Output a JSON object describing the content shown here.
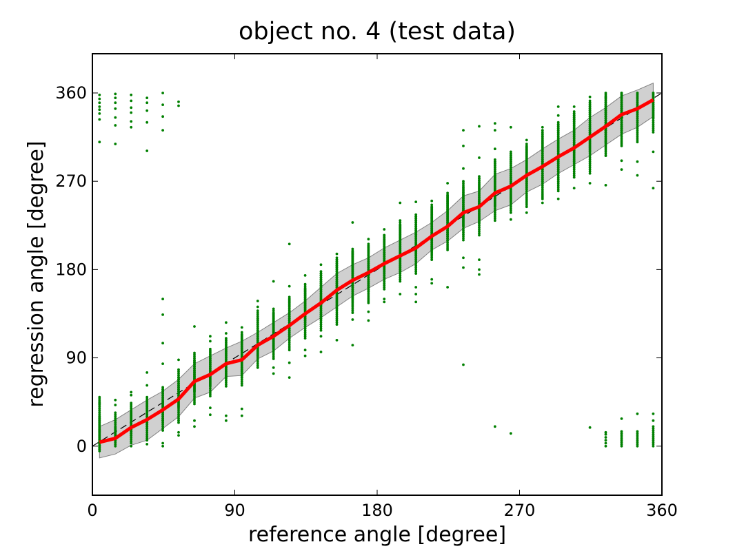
{
  "chart_data": {
    "type": "scatter",
    "title": "object no. 4 (test data)",
    "xlabel": "reference angle [degree]",
    "ylabel": "regression angle [degree]",
    "xlim": [
      0,
      360
    ],
    "ylim": [
      -50,
      400
    ],
    "xticks": [
      0,
      90,
      180,
      270,
      360
    ],
    "yticks": [
      0,
      90,
      180,
      270,
      360
    ],
    "grid": false,
    "colors": {
      "points": "#008000",
      "mean": "#ff0000",
      "band": "#c8c8c8",
      "band_edge": "#808080",
      "reference": "#000000"
    },
    "bin_x": [
      4.5,
      14.5,
      24.5,
      34.5,
      44.5,
      54.5,
      64.5,
      74.5,
      84.5,
      94.5,
      104.5,
      114.5,
      124.5,
      134.5,
      144.5,
      154.5,
      164.5,
      174.5,
      184.5,
      194.5,
      204.5,
      214.5,
      224.5,
      234.5,
      244.5,
      254.5,
      264.5,
      274.5,
      284.5,
      294.5,
      304.5,
      314.5,
      324.5,
      334.5,
      344.5,
      354.5
    ],
    "series": [
      {
        "role": "mean",
        "values": [
          4,
          8,
          19,
          27,
          37,
          48,
          66,
          73,
          84,
          88,
          103,
          112,
          123,
          135,
          146,
          159,
          169,
          177,
          186,
          194,
          202,
          214,
          224,
          238,
          244,
          258,
          265,
          276,
          285,
          295,
          304,
          315,
          326,
          338,
          344,
          353
        ]
      },
      {
        "role": "band_upper",
        "values": [
          20,
          27,
          37,
          47,
          56,
          68,
          84,
          92,
          100,
          107,
          116,
          126,
          136,
          148,
          162,
          176,
          185,
          192,
          202,
          210,
          218,
          228,
          240,
          255,
          260,
          277,
          283,
          292,
          303,
          313,
          322,
          335,
          345,
          357,
          363,
          370
        ]
      },
      {
        "role": "band_lower",
        "values": [
          -12,
          -8,
          1,
          6,
          18,
          30,
          49,
          55,
          71,
          72,
          89,
          97,
          110,
          121,
          131,
          142,
          153,
          161,
          170,
          177,
          186,
          200,
          209,
          222,
          229,
          240,
          246,
          259,
          267,
          278,
          287,
          296,
          307,
          318,
          325,
          336
        ]
      }
    ],
    "point_groups": [
      {
        "x": 4.5,
        "ranges": [
          [
            -5,
            16
          ],
          [
            -3,
            30
          ],
          [
            15,
            50
          ]
        ],
        "extra": [
          0,
          3,
          44,
          310,
          333,
          339,
          343,
          346,
          350,
          354,
          358
        ]
      },
      {
        "x": 14.5,
        "ranges": [
          [
            0,
            19
          ],
          [
            6,
            34
          ]
        ],
        "extra": [
          42,
          47,
          308,
          327,
          335,
          344,
          350,
          355,
          359
        ]
      },
      {
        "x": 24.5,
        "ranges": [
          [
            3,
            35
          ],
          [
            11,
            44
          ]
        ],
        "extra": [
          0,
          52,
          55,
          325,
          331,
          340,
          345,
          352,
          358
        ]
      },
      {
        "x": 34.5,
        "ranges": [
          [
            6,
            46
          ],
          [
            18,
            50
          ]
        ],
        "extra": [
          2,
          62,
          75,
          301,
          330,
          342,
          350,
          355
        ]
      },
      {
        "x": 44.5,
        "ranges": [
          [
            16,
            58
          ],
          [
            26,
            60
          ]
        ],
        "extra": [
          0,
          3,
          84,
          105,
          134,
          150,
          322,
          336,
          348,
          360
        ]
      },
      {
        "x": 54.5,
        "ranges": [
          [
            24,
            70
          ],
          [
            40,
            78
          ]
        ],
        "extra": [
          11,
          14,
          88,
          347,
          351
        ]
      },
      {
        "x": 64.5,
        "ranges": [
          [
            43,
            87
          ],
          [
            56,
            95
          ]
        ],
        "extra": [
          20,
          26,
          122
        ]
      },
      {
        "x": 74.5,
        "ranges": [
          [
            51,
            97
          ],
          [
            62,
            99
          ]
        ],
        "extra": [
          32,
          39,
          107,
          112
        ]
      },
      {
        "x": 84.5,
        "ranges": [
          [
            61,
            108
          ],
          [
            70,
            110
          ]
        ],
        "extra": [
          26,
          31,
          115,
          126
        ]
      },
      {
        "x": 94.5,
        "ranges": [
          [
            62,
            113
          ],
          [
            70,
            116
          ]
        ],
        "extra": [
          31,
          38,
          121
        ]
      },
      {
        "x": 104.5,
        "ranges": [
          [
            80,
            130
          ],
          [
            92,
            138
          ]
        ],
        "extra": [
          148,
          142
        ]
      },
      {
        "x": 114.5,
        "ranges": [
          [
            89,
            135
          ],
          [
            100,
            140
          ]
        ],
        "extra": [
          74,
          80,
          168
        ]
      },
      {
        "x": 124.5,
        "ranges": [
          [
            98,
            150
          ],
          [
            112,
            152
          ]
        ],
        "extra": [
          70,
          85,
          206,
          163
        ]
      },
      {
        "x": 134.5,
        "ranges": [
          [
            110,
            160
          ],
          [
            120,
            165
          ]
        ],
        "extra": [
          92,
          98,
          174
        ]
      },
      {
        "x": 144.5,
        "ranges": [
          [
            118,
            176
          ],
          [
            130,
            178
          ]
        ],
        "extra": [
          96,
          112,
          185
        ]
      },
      {
        "x": 154.5,
        "ranges": [
          [
            124,
            190
          ],
          [
            140,
            192
          ]
        ],
        "extra": [
          108,
          196
        ]
      },
      {
        "x": 164.5,
        "ranges": [
          [
            136,
            198
          ],
          [
            150,
            201
          ]
        ],
        "extra": [
          103,
          129,
          228
        ]
      },
      {
        "x": 174.5,
        "ranges": [
          [
            146,
            204
          ],
          [
            158,
            206
          ]
        ],
        "extra": [
          128,
          137,
          211
        ]
      },
      {
        "x": 184.5,
        "ranges": [
          [
            160,
            215
          ],
          [
            170,
            215
          ]
        ],
        "extra": [
          147,
          150,
          221
        ]
      },
      {
        "x": 194.5,
        "ranges": [
          [
            168,
            225
          ],
          [
            178,
            230
          ]
        ],
        "extra": [
          155,
          248
        ]
      },
      {
        "x": 204.5,
        "ranges": [
          [
            176,
            234
          ],
          [
            190,
            236
          ]
        ],
        "extra": [
          147,
          155,
          162,
          249
        ]
      },
      {
        "x": 214.5,
        "ranges": [
          [
            190,
            243
          ],
          [
            200,
            246
          ]
        ],
        "extra": [
          166,
          170,
          250
        ]
      },
      {
        "x": 224.5,
        "ranges": [
          [
            200,
            255
          ],
          [
            210,
            258
          ]
        ],
        "extra": [
          162,
          268
        ]
      },
      {
        "x": 234.5,
        "ranges": [
          [
            210,
            264
          ],
          [
            225,
            270
          ]
        ],
        "extra": [
          83,
          182,
          192,
          322,
          306,
          283
        ]
      },
      {
        "x": 244.5,
        "ranges": [
          [
            215,
            273
          ],
          [
            228,
            275
          ]
        ],
        "extra": [
          175,
          180,
          190,
          294,
          326
        ]
      },
      {
        "x": 254.5,
        "ranges": [
          [
            230,
            290
          ],
          [
            245,
            292
          ]
        ],
        "extra": [
          20,
          276,
          303,
          322,
          329
        ]
      },
      {
        "x": 264.5,
        "ranges": [
          [
            238,
            298
          ],
          [
            250,
            300
          ]
        ],
        "extra": [
          13,
          231,
          325
        ]
      },
      {
        "x": 274.5,
        "ranges": [
          [
            244,
            305
          ],
          [
            262,
            308
          ]
        ],
        "extra": [
          238,
          312
        ]
      },
      {
        "x": 284.5,
        "ranges": [
          [
            252,
            318
          ],
          [
            270,
            322
          ]
        ],
        "extra": [
          248,
          325
        ]
      },
      {
        "x": 294.5,
        "ranges": [
          [
            260,
            328
          ],
          [
            280,
            330
          ]
        ],
        "extra": [
          252,
          337,
          346
        ]
      },
      {
        "x": 304.5,
        "ranges": [
          [
            274,
            339
          ],
          [
            290,
            341
          ]
        ],
        "extra": [
          263,
          346
        ]
      },
      {
        "x": 314.5,
        "ranges": [
          [
            278,
            350
          ],
          [
            300,
            352
          ]
        ],
        "extra": [
          19,
          268,
          356
        ]
      },
      {
        "x": 324.5,
        "ranges": [
          [
            296,
            356
          ],
          [
            310,
            358
          ]
        ],
        "extra": [
          0,
          3,
          6,
          9,
          12,
          14,
          266,
          360
        ]
      },
      {
        "x": 334.5,
        "ranges": [
          [
            0,
            15
          ],
          [
            306,
            360
          ],
          [
            320,
            360
          ]
        ],
        "extra": [
          28,
          282,
          291
        ]
      },
      {
        "x": 344.5,
        "ranges": [
          [
            0,
            15
          ],
          [
            310,
            360
          ],
          [
            330,
            360
          ]
        ],
        "extra": [
          33,
          276,
          290
        ]
      },
      {
        "x": 354.5,
        "ranges": [
          [
            0,
            20
          ],
          [
            320,
            360
          ],
          [
            335,
            360
          ]
        ],
        "extra": [
          26,
          33,
          263,
          300
        ]
      }
    ]
  }
}
